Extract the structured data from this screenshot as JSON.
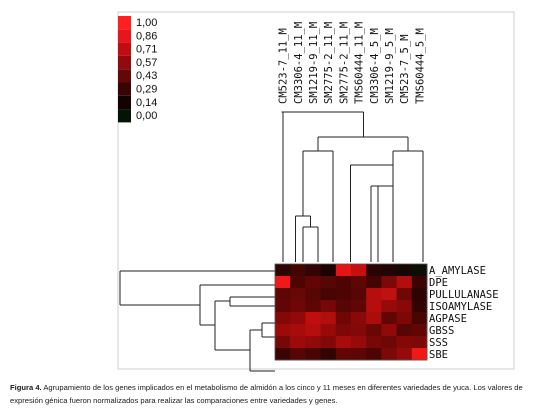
{
  "legend": {
    "labels": [
      "1,00",
      "0,86",
      "0,71",
      "0,57",
      "0,43",
      "0,29",
      "0,14",
      "0,00"
    ],
    "colors": [
      "#ff2020",
      "#e8151c",
      "#c00d14",
      "#920a10",
      "#650709",
      "#3a0405",
      "#140101",
      "#031404"
    ]
  },
  "samples": [
    "CM523-7_11_M",
    "CM3306-4_11_M",
    "SM1219-9_11_M",
    "SM2775-2_11_M",
    "SM2775-2_11_M",
    "TMS60444_11_M",
    "CM3306-4_5_M",
    "SM1219-9_5_M",
    "CM523-7_5_M",
    "TMS60444_5_M"
  ],
  "genes": [
    "A_AMYLASE",
    "DPE",
    "PULLULANASE",
    "ISOAMYLASE",
    "AGPASE",
    "GBSS",
    "SSS",
    "SBE"
  ],
  "heatmap": [
    [
      0.2,
      0.28,
      0.22,
      0.12,
      0.9,
      0.78,
      0.18,
      0.15,
      0.1,
      0.05
    ],
    [
      0.95,
      0.32,
      0.4,
      0.35,
      0.32,
      0.38,
      0.28,
      0.5,
      0.7,
      0.25
    ],
    [
      0.38,
      0.42,
      0.36,
      0.3,
      0.32,
      0.36,
      0.72,
      0.76,
      0.45,
      0.2
    ],
    [
      0.4,
      0.45,
      0.38,
      0.48,
      0.35,
      0.4,
      0.72,
      0.6,
      0.55,
      0.22
    ],
    [
      0.52,
      0.58,
      0.75,
      0.7,
      0.45,
      0.55,
      0.68,
      0.4,
      0.5,
      0.3
    ],
    [
      0.62,
      0.66,
      0.72,
      0.6,
      0.5,
      0.52,
      0.42,
      0.58,
      0.36,
      0.4
    ],
    [
      0.48,
      0.62,
      0.58,
      0.52,
      0.66,
      0.6,
      0.48,
      0.45,
      0.52,
      0.5
    ],
    [
      0.25,
      0.35,
      0.3,
      0.22,
      0.4,
      0.38,
      0.32,
      0.5,
      0.6,
      0.95
    ]
  ],
  "caption": {
    "label": "Figura 4.",
    "text": "Agrupamiento de los genes implicados en el metabolismo de almidón a los cinco y 11 meses en diferentes variedades de yuca. Los valores de expresión génica fueron normalizados para realizar las comparaciones entre variedades y genes."
  }
}
